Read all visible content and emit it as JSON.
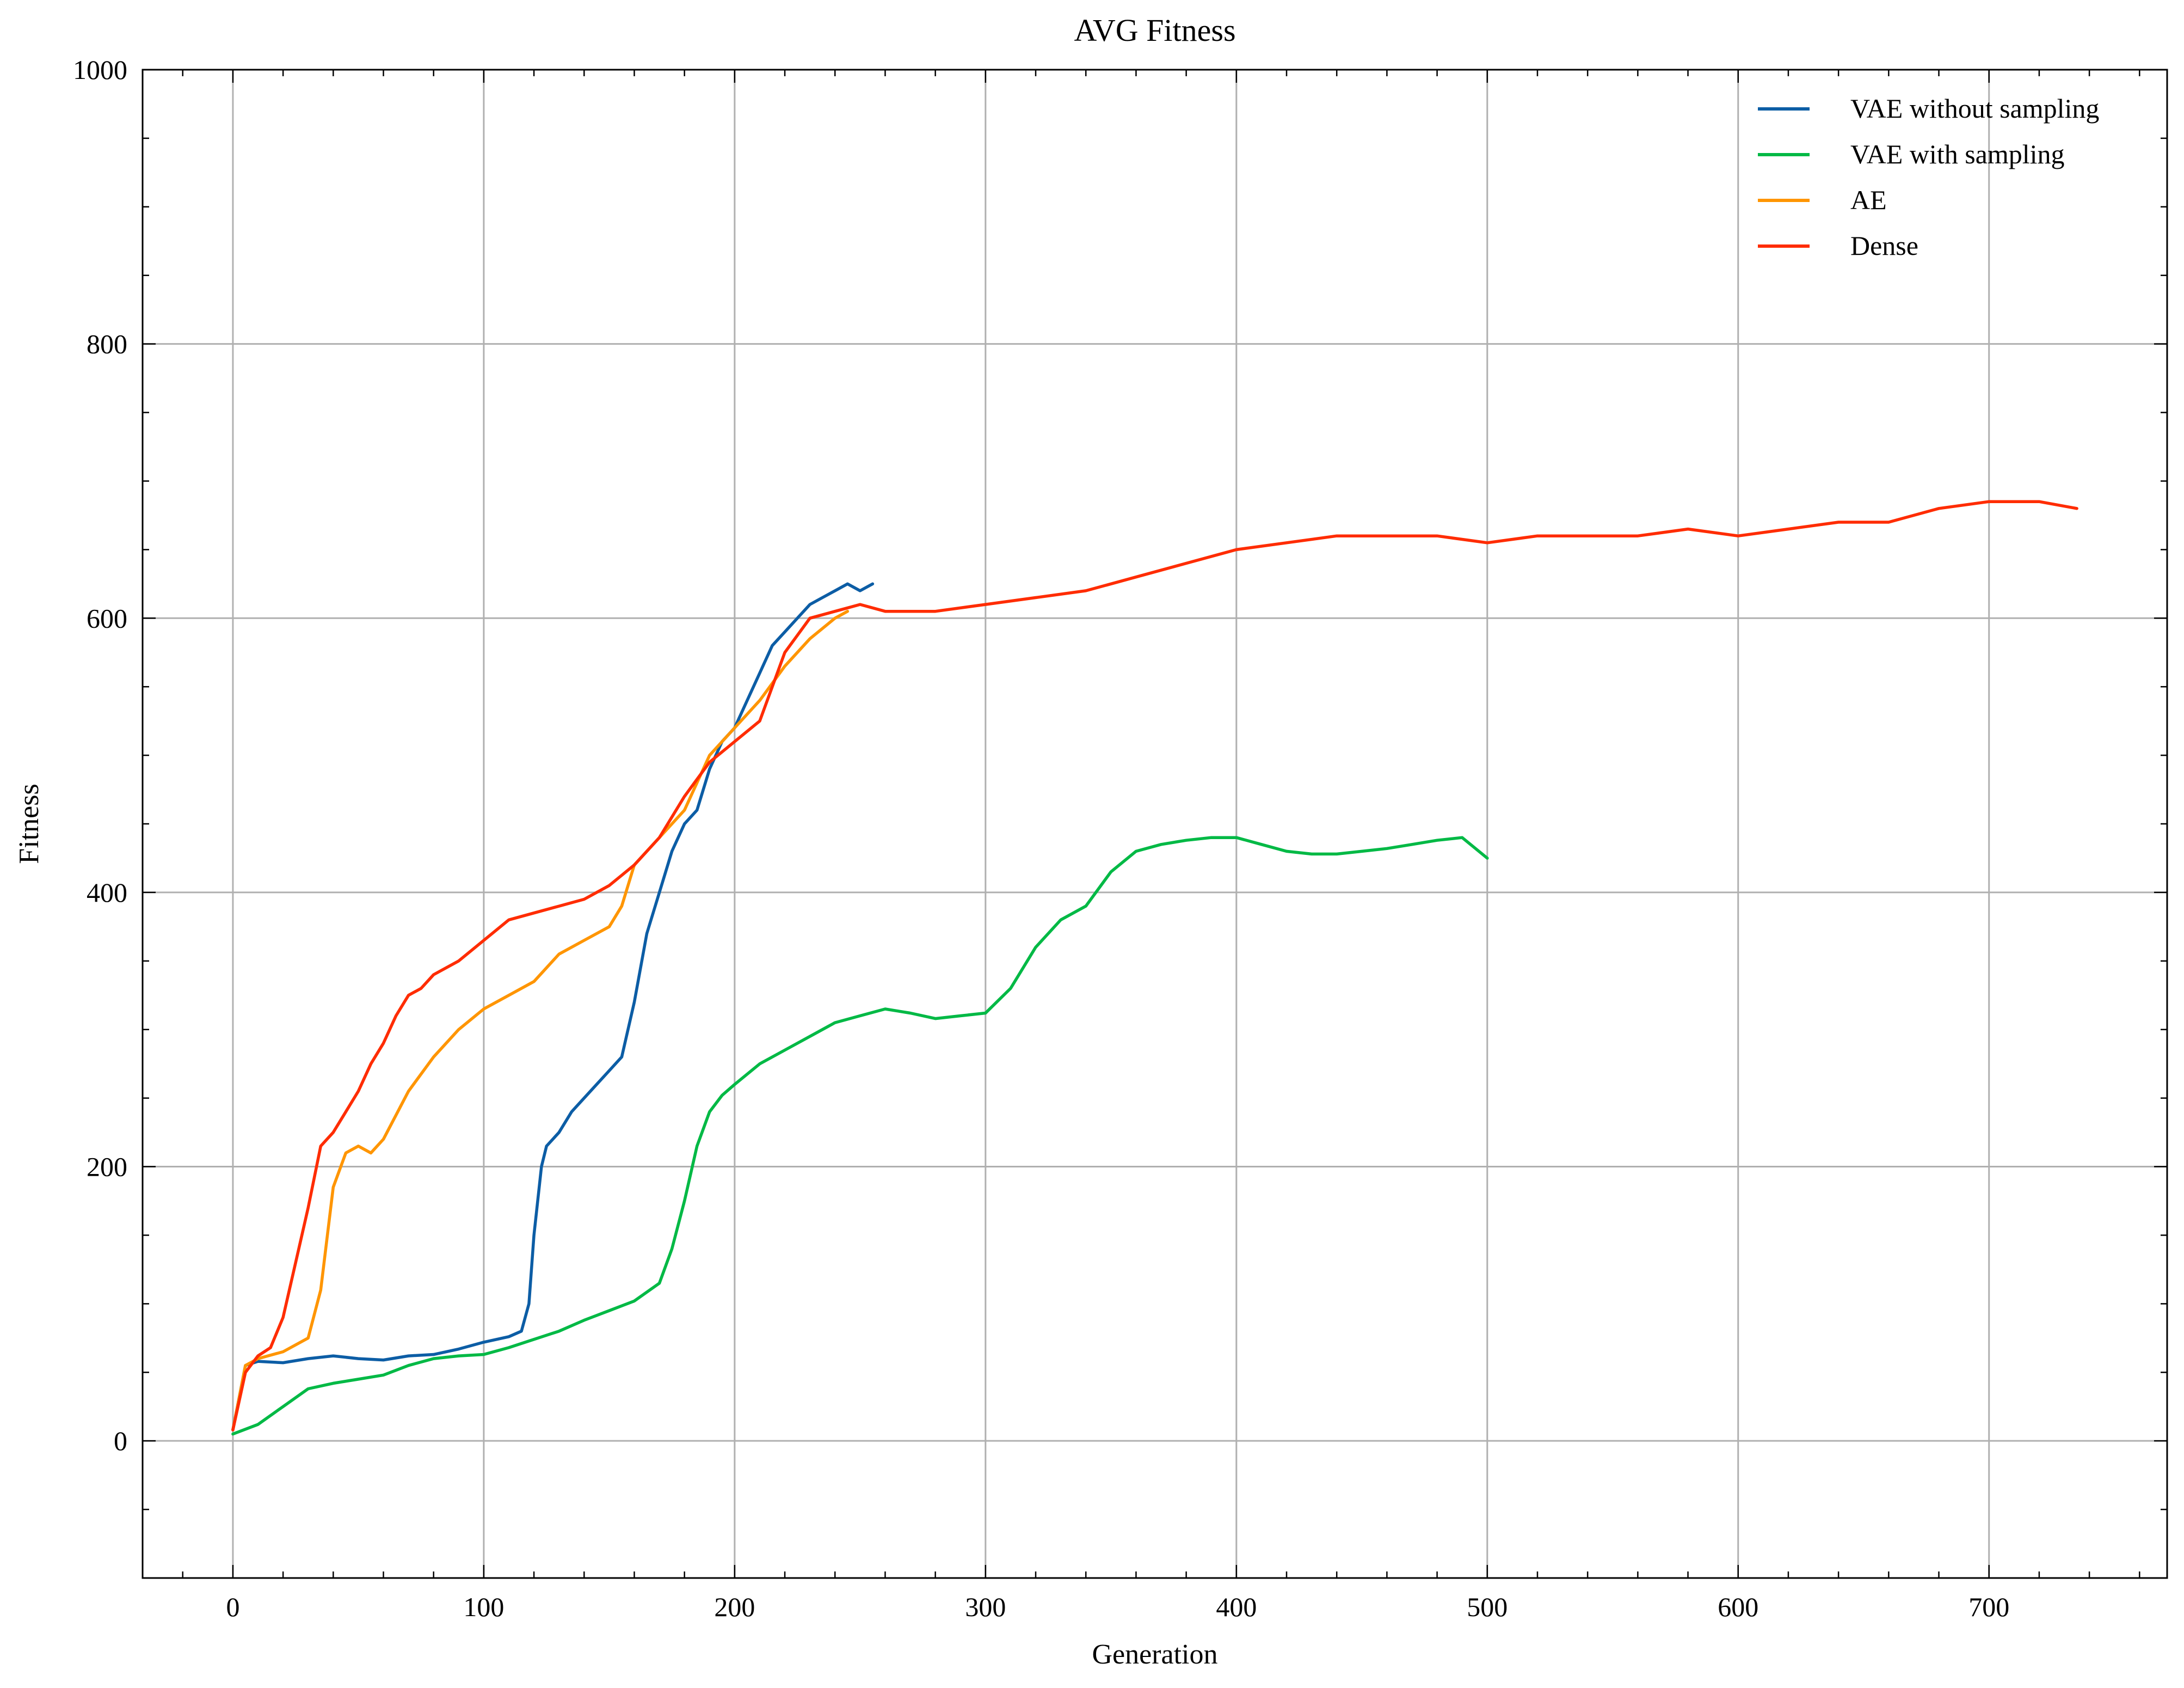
{
  "chart_data": {
    "type": "line",
    "title": "AVG Fitness",
    "xlabel": "Generation",
    "ylabel": "Fitness",
    "xlim": [
      -36,
      771
    ],
    "ylim": [
      -100,
      1000
    ],
    "x_ticks": [
      0,
      100,
      200,
      300,
      400,
      500,
      600,
      700
    ],
    "y_ticks": [
      0,
      200,
      400,
      600,
      800,
      1000
    ],
    "x_tick_labels": [
      "0",
      "100",
      "200",
      "300",
      "400",
      "500",
      "600",
      "700"
    ],
    "y_tick_labels": [
      "0",
      "200",
      "400",
      "600",
      "800",
      "1000"
    ],
    "grid": true,
    "legend_position": "top-right",
    "series": [
      {
        "name": "VAE without sampling",
        "color": "#0C5DA5",
        "x": [
          0,
          5,
          10,
          20,
          30,
          40,
          50,
          60,
          70,
          80,
          90,
          100,
          110,
          115,
          118,
          120,
          123,
          125,
          130,
          135,
          140,
          145,
          150,
          155,
          160,
          165,
          170,
          175,
          180,
          185,
          190,
          195,
          200,
          205,
          210,
          215,
          220,
          225,
          230,
          235,
          240,
          245,
          250,
          255
        ],
        "y": [
          8,
          55,
          58,
          57,
          60,
          62,
          60,
          59,
          62,
          63,
          67,
          72,
          76,
          80,
          100,
          150,
          200,
          215,
          225,
          240,
          250,
          260,
          270,
          280,
          320,
          370,
          400,
          430,
          450,
          460,
          490,
          510,
          520,
          540,
          560,
          580,
          590,
          600,
          610,
          615,
          620,
          625,
          620,
          625
        ]
      },
      {
        "name": "VAE with sampling",
        "color": "#00B945",
        "x": [
          0,
          10,
          20,
          30,
          40,
          50,
          60,
          70,
          80,
          90,
          100,
          110,
          120,
          130,
          140,
          150,
          160,
          170,
          175,
          180,
          185,
          190,
          195,
          200,
          210,
          220,
          230,
          240,
          250,
          260,
          270,
          280,
          290,
          300,
          310,
          320,
          330,
          340,
          350,
          360,
          370,
          380,
          390,
          400,
          410,
          420,
          430,
          440,
          450,
          460,
          470,
          480,
          490,
          500
        ],
        "y": [
          5,
          12,
          25,
          38,
          42,
          45,
          48,
          55,
          60,
          62,
          63,
          68,
          74,
          80,
          88,
          95,
          102,
          115,
          140,
          175,
          215,
          240,
          252,
          260,
          275,
          285,
          295,
          305,
          310,
          315,
          312,
          308,
          310,
          312,
          330,
          360,
          380,
          390,
          415,
          430,
          435,
          438,
          440,
          440,
          435,
          430,
          428,
          428,
          430,
          432,
          435,
          438,
          440,
          425
        ]
      },
      {
        "name": "AE",
        "color": "#FF9500",
        "x": [
          0,
          5,
          10,
          20,
          30,
          35,
          40,
          45,
          50,
          55,
          60,
          70,
          80,
          90,
          100,
          110,
          120,
          130,
          140,
          150,
          155,
          160,
          170,
          180,
          190,
          200,
          210,
          220,
          230,
          240,
          245
        ],
        "y": [
          8,
          55,
          60,
          65,
          75,
          110,
          185,
          210,
          215,
          210,
          220,
          255,
          280,
          300,
          315,
          325,
          335,
          355,
          365,
          375,
          390,
          420,
          440,
          460,
          500,
          520,
          540,
          565,
          585,
          600,
          605
        ]
      },
      {
        "name": "Dense",
        "color": "#FF2C00",
        "x": [
          0,
          5,
          10,
          15,
          20,
          25,
          30,
          35,
          40,
          45,
          50,
          55,
          60,
          65,
          70,
          75,
          80,
          90,
          100,
          110,
          120,
          130,
          140,
          150,
          160,
          170,
          180,
          190,
          200,
          210,
          220,
          230,
          240,
          250,
          260,
          280,
          300,
          320,
          340,
          360,
          380,
          400,
          420,
          440,
          460,
          480,
          500,
          520,
          540,
          560,
          580,
          600,
          620,
          640,
          660,
          680,
          700,
          720,
          735
        ],
        "y": [
          8,
          50,
          62,
          68,
          90,
          130,
          170,
          215,
          225,
          240,
          255,
          275,
          290,
          310,
          325,
          330,
          340,
          350,
          365,
          380,
          385,
          390,
          395,
          405,
          420,
          440,
          470,
          495,
          510,
          525,
          575,
          600,
          605,
          610,
          605,
          605,
          610,
          615,
          620,
          630,
          640,
          650,
          655,
          660,
          660,
          660,
          655,
          660,
          660,
          660,
          665,
          660,
          665,
          670,
          670,
          680,
          685,
          685,
          680
        ]
      }
    ]
  }
}
